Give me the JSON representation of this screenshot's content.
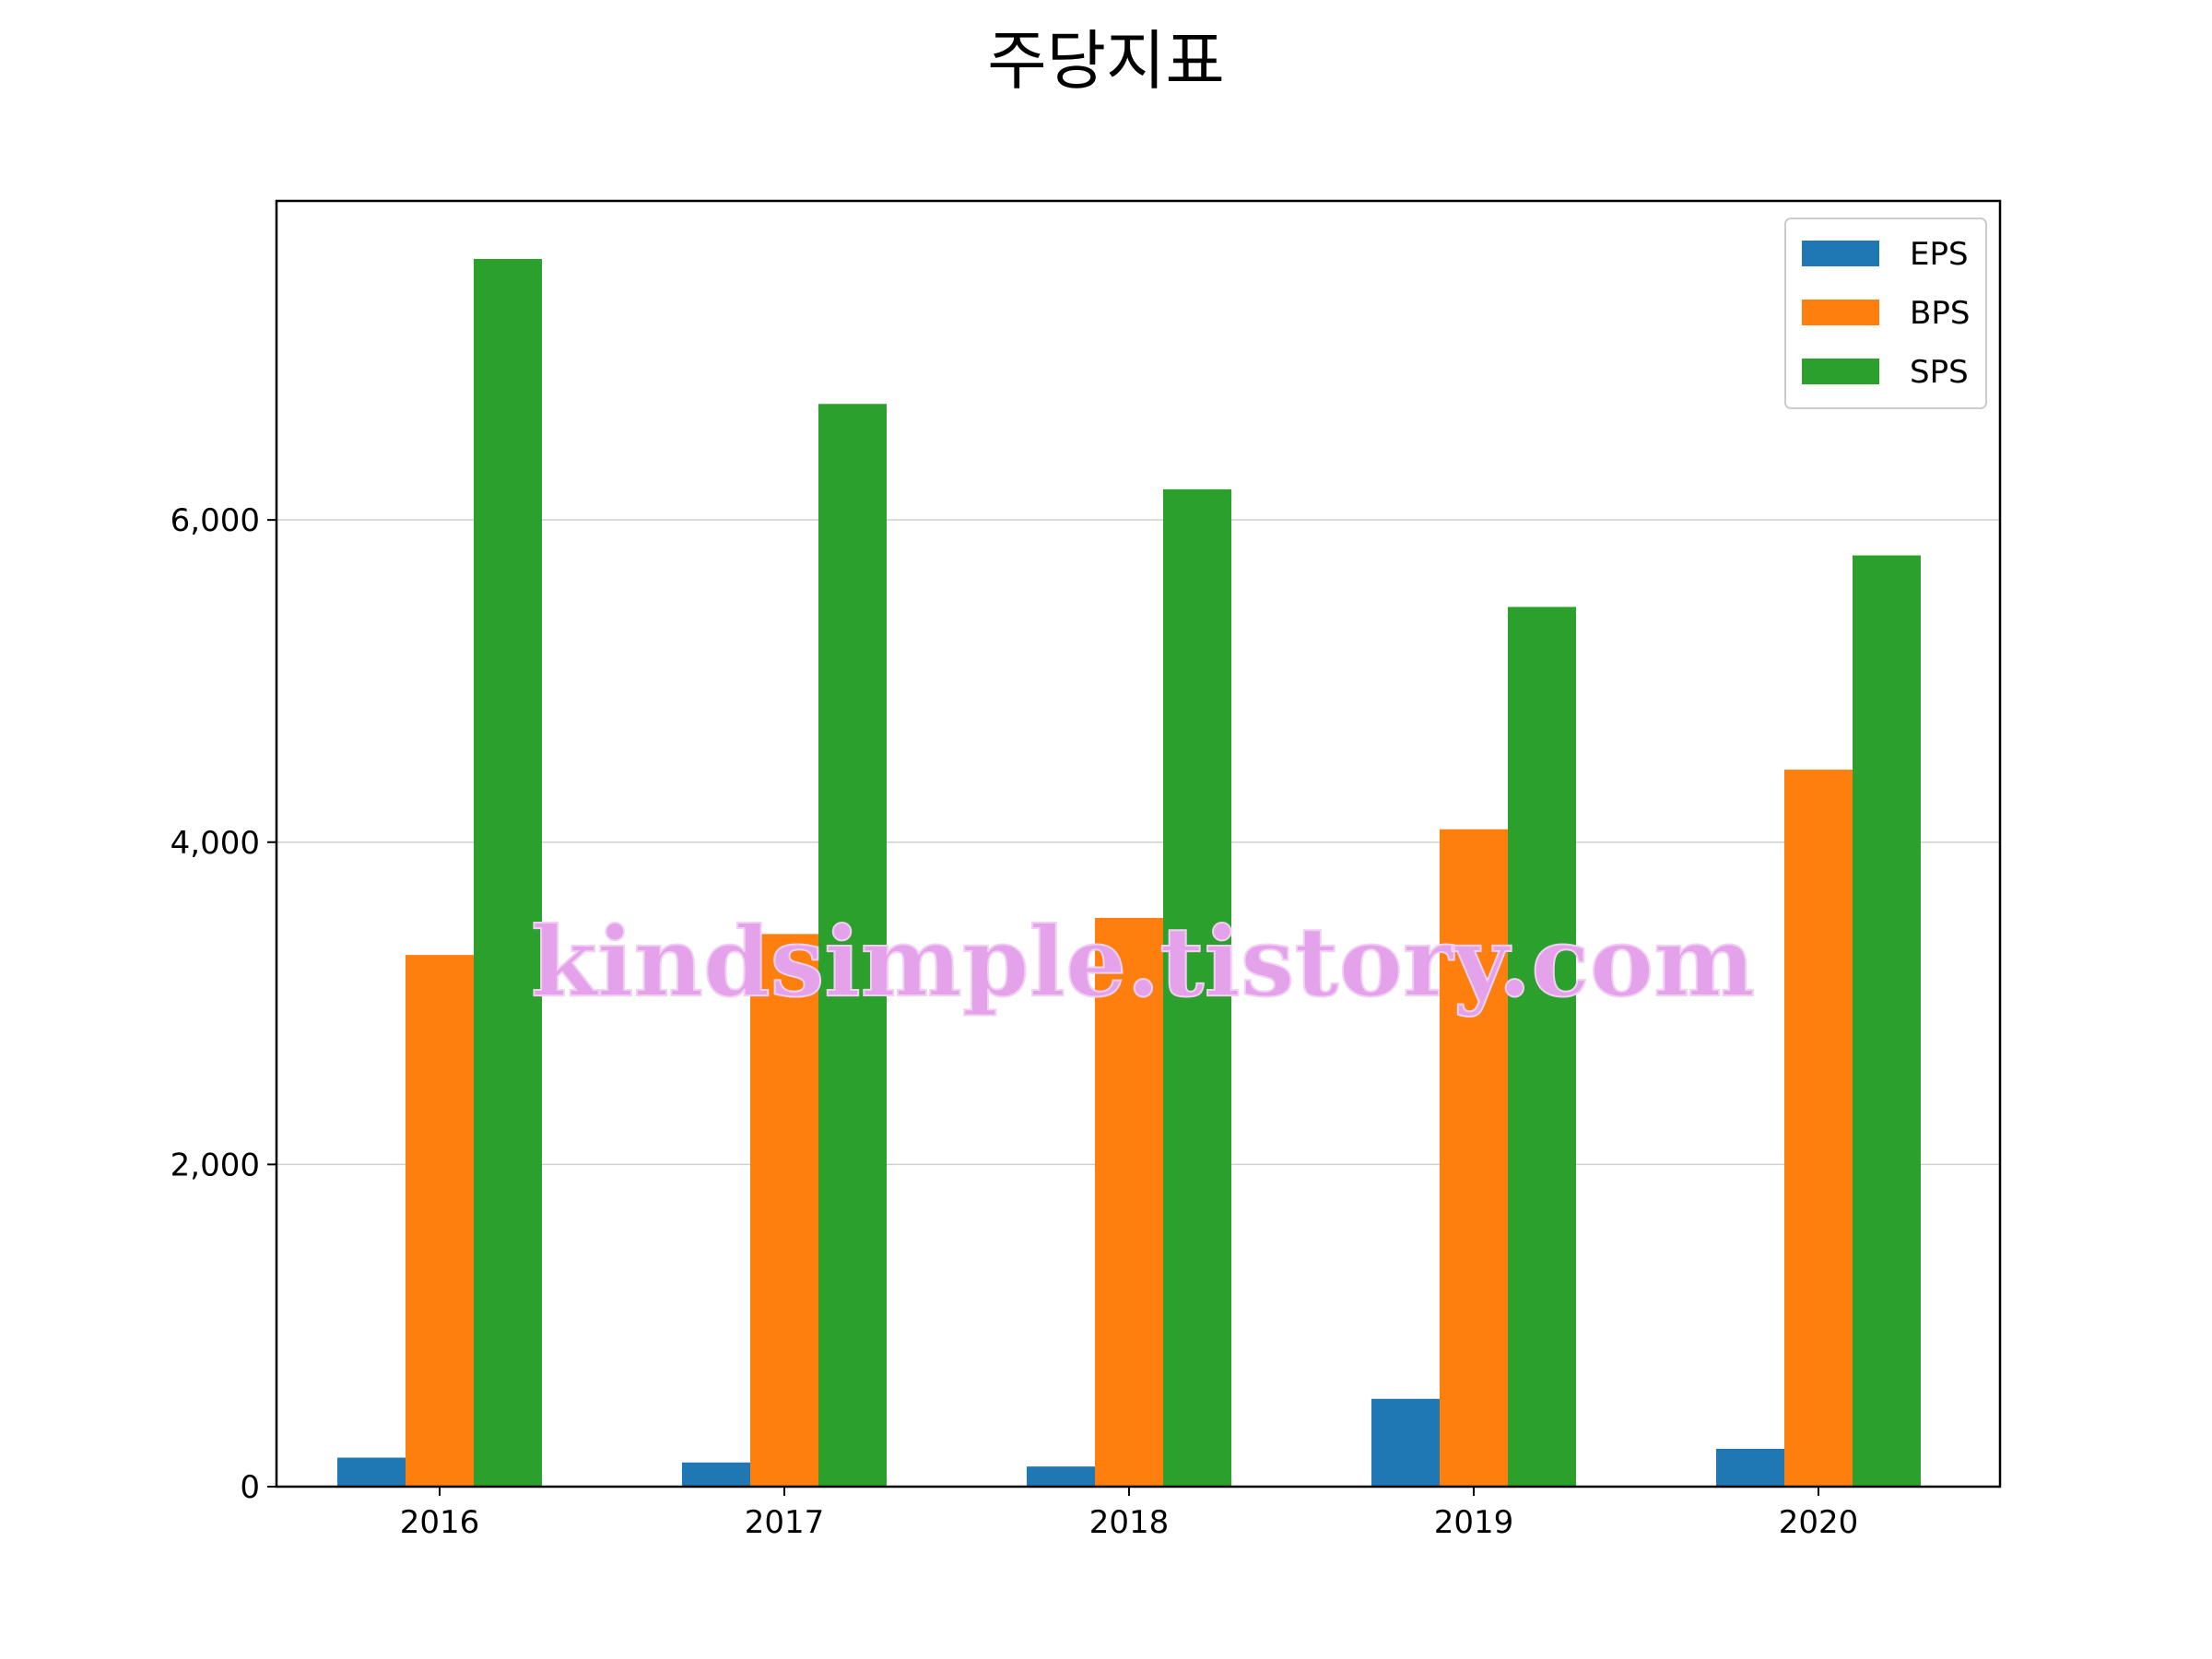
{
  "chart_data": {
    "type": "bar",
    "title": "주당지표",
    "xlabel": "",
    "ylabel": "",
    "categories": [
      "2016",
      "2017",
      "2018",
      "2019",
      "2020"
    ],
    "series": [
      {
        "name": "EPS",
        "color": "#1f77b4",
        "values": [
          180,
          150,
          125,
          545,
          235
        ]
      },
      {
        "name": "BPS",
        "color": "#ff7f0e",
        "values": [
          3300,
          3430,
          3530,
          4080,
          4450
        ]
      },
      {
        "name": "SPS",
        "color": "#2ca02c",
        "values": [
          7620,
          6720,
          6190,
          5460,
          5780
        ]
      }
    ],
    "ylim": [
      0,
      7980
    ],
    "yticks": [
      0,
      2000,
      4000,
      6000
    ],
    "ytick_labels": [
      "0",
      "2,000",
      "4,000",
      "6,000"
    ],
    "grid": "y",
    "legend_position": "top-right"
  },
  "watermark": "kindsimple.tistory.com"
}
